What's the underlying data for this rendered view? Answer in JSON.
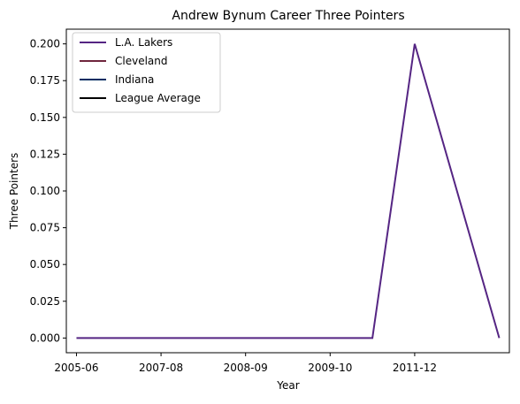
{
  "chart_data": {
    "type": "line",
    "title": "Andrew Bynum Career Three Pointers",
    "xlabel": "Year",
    "ylabel": "Three Pointers",
    "x_tick_labels": [
      "2005-06",
      "2007-08",
      "2008-09",
      "2009-10",
      "2011-12"
    ],
    "y_ticks": [
      0.0,
      0.025,
      0.05,
      0.075,
      0.1,
      0.125,
      0.15,
      0.175,
      0.2
    ],
    "y_tick_labels": [
      "0.000",
      "0.025",
      "0.050",
      "0.075",
      "0.100",
      "0.125",
      "0.150",
      "0.175",
      "0.200"
    ],
    "ylim": [
      -0.01,
      0.21
    ],
    "grid": false,
    "legend_position": "top-left",
    "series": [
      {
        "name": "L.A. Lakers",
        "color": "#552583",
        "points": [
          {
            "x": "2005-06",
            "y": 0.0
          },
          {
            "x": "2010-11",
            "y": 0.0
          },
          {
            "x": "2011-12",
            "y": 0.2
          },
          {
            "x": "2012-13",
            "y": 0.0
          }
        ]
      },
      {
        "name": "Cleveland",
        "color": "#6F263D",
        "points": []
      },
      {
        "name": "Indiana",
        "color": "#002D62",
        "points": []
      },
      {
        "name": "League Average",
        "color": "#000000",
        "points": []
      }
    ]
  }
}
